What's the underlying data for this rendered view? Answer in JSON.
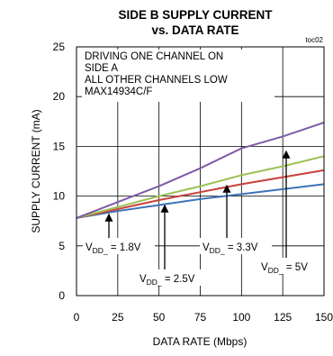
{
  "chart_data": {
    "type": "line",
    "title": [
      "SIDE B SUPPLY CURRENT",
      "vs. DATA RATE"
    ],
    "figure_code": "toc02",
    "xlabel": "DATA RATE (Mbps)",
    "ylabel": "SUPPLY CURRENT (mA)",
    "xlim": [
      0,
      150
    ],
    "ylim": [
      0,
      25
    ],
    "xticks": [
      0,
      25,
      50,
      75,
      100,
      125,
      150
    ],
    "yticks": [
      0,
      5,
      10,
      15,
      20,
      25
    ],
    "grid": true,
    "annotation": [
      "DRIVING ONE CHANNEL ON",
      "SIDE A",
      "ALL OTHER CHANNELS LOW",
      "MAX14934C/F"
    ],
    "series": [
      {
        "id": "v18",
        "color": "#3d74b8",
        "points": [
          [
            0,
            7.8
          ],
          [
            25,
            8.5
          ],
          [
            50,
            9.1
          ],
          [
            75,
            9.7
          ],
          [
            100,
            10.2
          ],
          [
            125,
            10.7
          ],
          [
            150,
            11.2
          ]
        ]
      },
      {
        "id": "v25",
        "color": "#c8423a",
        "points": [
          [
            0,
            7.8
          ],
          [
            25,
            8.7
          ],
          [
            50,
            9.6
          ],
          [
            75,
            10.4
          ],
          [
            100,
            11.2
          ],
          [
            125,
            11.9
          ],
          [
            150,
            12.6
          ]
        ]
      },
      {
        "id": "v33",
        "color": "#9dc158",
        "points": [
          [
            0,
            7.8
          ],
          [
            25,
            8.9
          ],
          [
            50,
            10.0
          ],
          [
            75,
            11.0
          ],
          [
            100,
            12.1
          ],
          [
            125,
            13.0
          ],
          [
            150,
            14.0
          ]
        ]
      },
      {
        "id": "v5",
        "color": "#7d5ba6",
        "points": [
          [
            0,
            7.8
          ],
          [
            25,
            9.4
          ],
          [
            50,
            11.0
          ],
          [
            75,
            12.8
          ],
          [
            100,
            14.8
          ],
          [
            125,
            16.0
          ],
          [
            150,
            17.4
          ]
        ]
      }
    ],
    "labels": [
      {
        "main": "V",
        "sub": "DD_",
        "value": " = 1.8V",
        "series": "v18"
      },
      {
        "main": "V",
        "sub": "DD_",
        "value": " = 2.5V",
        "series": "v25"
      },
      {
        "main": "V",
        "sub": "DD_",
        "value": " = 3.3V",
        "series": "v33"
      },
      {
        "main": "V",
        "sub": "DD_",
        "value": " = 5V",
        "series": "v5"
      }
    ]
  }
}
